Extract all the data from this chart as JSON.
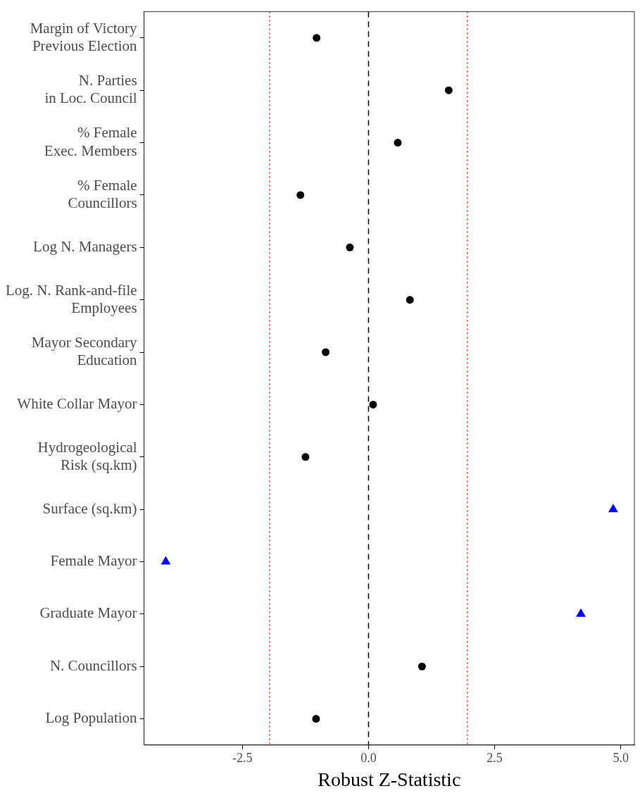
{
  "chart_data": {
    "type": "scatter",
    "orientation": "horizontal",
    "xlabel": "Robust Z-Statistic",
    "categories": [
      "Margin of Victory\nPrevious Election",
      "N. Parties\nin Loc. Council",
      "% Female\nExec. Members",
      "% Female\nCouncillors",
      "Log N. Managers",
      "Log. N. Rank-and-file\nEmployees",
      "Mayor Secondary\nEducation",
      "White Collar Mayor",
      "Hydrogeological\nRisk (sq.km)",
      "Surface (sq.km)",
      "Female Mayor",
      "Graduate Mayor",
      "N. Councillors",
      "Log Population"
    ],
    "series": [
      {
        "color": "#000000",
        "marker": "circle",
        "values": [
          -1.03,
          1.59,
          0.58,
          -1.35,
          -0.37,
          0.82,
          -0.85,
          0.09,
          -1.25,
          null,
          null,
          null,
          1.06,
          -1.04
        ]
      },
      {
        "color": "#0000ff",
        "marker": "triangle",
        "values": [
          null,
          null,
          null,
          null,
          null,
          null,
          null,
          null,
          null,
          4.85,
          -4.02,
          4.21,
          null,
          null
        ]
      }
    ],
    "xlim": [
      -4.45,
      5.27
    ],
    "xticks": [
      -2.5,
      {
        "value": 0,
        "label": "0.0"
      },
      2.5,
      {
        "value": 5,
        "label": "5.0"
      }
    ],
    "ref_lines": [
      {
        "axis": "x",
        "value": 0,
        "color": "#000000",
        "line_style": "dashed"
      },
      {
        "axis": "x",
        "value": -1.96,
        "color": "#e8151b",
        "line_style": "dotted"
      },
      {
        "axis": "x",
        "value": 1.96,
        "color": "#e8151b",
        "line_style": "dotted"
      }
    ],
    "grid": false,
    "legend": false
  }
}
